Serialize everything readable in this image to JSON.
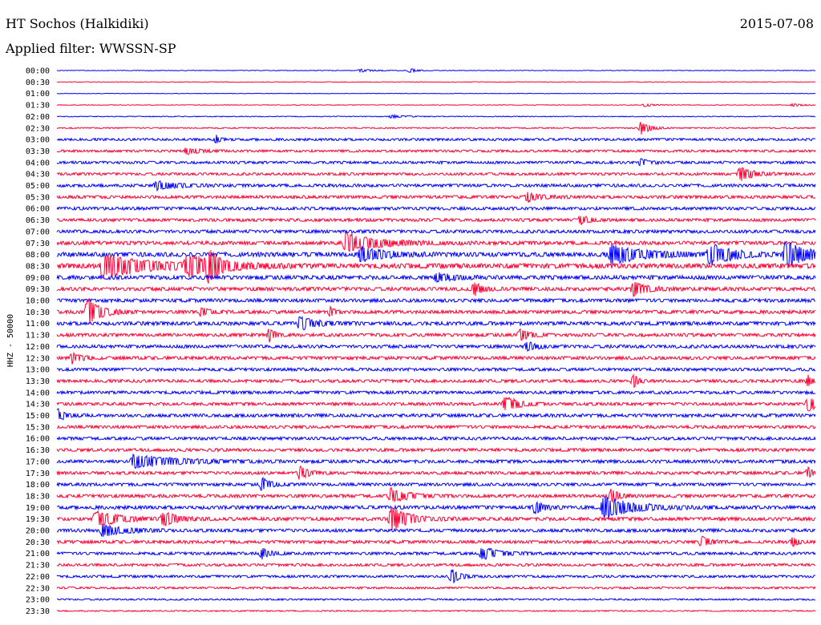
{
  "header": {
    "station": "HT Sochos (Halkidiki)",
    "date": "2015-07-08",
    "filter_label": "Applied filter: WWSSN-SP"
  },
  "chart_data": {
    "type": "line",
    "title": "HT Sochos (Halkidiki)",
    "subtitle": "Applied filter: WWSSN-SP",
    "ylabel": "HHZ - 50000",
    "trace_colors": [
      "#0000ff",
      "#ff0033"
    ],
    "rows": [
      "00:00",
      "00:30",
      "01:00",
      "01:30",
      "02:00",
      "02:30",
      "03:00",
      "03:30",
      "04:00",
      "04:30",
      "05:00",
      "05:30",
      "06:00",
      "06:30",
      "07:00",
      "07:30",
      "08:00",
      "08:30",
      "09:00",
      "09:30",
      "10:00",
      "10:30",
      "11:00",
      "11:30",
      "12:00",
      "12:30",
      "13:00",
      "13:30",
      "14:00",
      "14:30",
      "15:00",
      "15:30",
      "16:00",
      "16:30",
      "17:00",
      "17:30",
      "18:00",
      "18:30",
      "19:00",
      "19:30",
      "20:00",
      "20:30",
      "21:00",
      "21:30",
      "22:00",
      "22:30",
      "23:00",
      "23:30"
    ],
    "noise_level": [
      0.3,
      0.3,
      0.25,
      0.3,
      0.4,
      0.6,
      1.2,
      1.2,
      1.3,
      1.3,
      1.5,
      1.5,
      1.5,
      1.5,
      1.6,
      1.8,
      2.2,
      2.4,
      2.0,
      1.8,
      1.7,
      1.7,
      1.8,
      1.6,
      1.6,
      1.6,
      1.5,
      1.5,
      1.5,
      1.5,
      1.6,
      1.5,
      1.5,
      1.5,
      1.6,
      1.5,
      1.5,
      1.6,
      1.7,
      1.7,
      1.6,
      1.5,
      1.4,
      1.3,
      1.2,
      1.0,
      0.8,
      0.6
    ],
    "events": [
      {
        "row": 0,
        "pos": 0.4,
        "amp": 2,
        "dur": 0.03
      },
      {
        "row": 0,
        "pos": 0.465,
        "amp": 3,
        "dur": 0.015
      },
      {
        "row": 3,
        "pos": 0.775,
        "amp": 2,
        "dur": 0.02
      },
      {
        "row": 3,
        "pos": 0.97,
        "amp": 2,
        "dur": 0.02
      },
      {
        "row": 4,
        "pos": 0.44,
        "amp": 2,
        "dur": 0.03
      },
      {
        "row": 5,
        "pos": 0.77,
        "amp": 9,
        "dur": 0.02
      },
      {
        "row": 6,
        "pos": 0.21,
        "amp": 5,
        "dur": 0.01
      },
      {
        "row": 7,
        "pos": 0.17,
        "amp": 4,
        "dur": 0.03
      },
      {
        "row": 8,
        "pos": 0.77,
        "amp": 5,
        "dur": 0.02
      },
      {
        "row": 9,
        "pos": 0.9,
        "amp": 9,
        "dur": 0.03
      },
      {
        "row": 10,
        "pos": 0.13,
        "amp": 5,
        "dur": 0.05
      },
      {
        "row": 11,
        "pos": 0.62,
        "amp": 6,
        "dur": 0.03
      },
      {
        "row": 13,
        "pos": 0.69,
        "amp": 6,
        "dur": 0.02
      },
      {
        "row": 15,
        "pos": 0.38,
        "amp": 12,
        "dur": 0.08
      },
      {
        "row": 16,
        "pos": 0.4,
        "amp": 9,
        "dur": 0.06
      },
      {
        "row": 16,
        "pos": 0.73,
        "amp": 12,
        "dur": 0.08
      },
      {
        "row": 16,
        "pos": 0.86,
        "amp": 14,
        "dur": 0.05
      },
      {
        "row": 16,
        "pos": 0.96,
        "amp": 16,
        "dur": 0.05
      },
      {
        "row": 17,
        "pos": 0.06,
        "amp": 15,
        "dur": 0.1
      },
      {
        "row": 17,
        "pos": 0.17,
        "amp": 12,
        "dur": 0.08
      },
      {
        "row": 17,
        "pos": 0.2,
        "amp": 20,
        "dur": 0.02
      },
      {
        "row": 18,
        "pos": 0.5,
        "amp": 5,
        "dur": 0.04
      },
      {
        "row": 19,
        "pos": 0.55,
        "amp": 8,
        "dur": 0.02
      },
      {
        "row": 19,
        "pos": 0.76,
        "amp": 9,
        "dur": 0.03
      },
      {
        "row": 21,
        "pos": 0.04,
        "amp": 18,
        "dur": 0.03
      },
      {
        "row": 21,
        "pos": 0.19,
        "amp": 5,
        "dur": 0.02
      },
      {
        "row": 21,
        "pos": 0.36,
        "amp": 6,
        "dur": 0.01
      },
      {
        "row": 22,
        "pos": 0.32,
        "amp": 8,
        "dur": 0.04
      },
      {
        "row": 23,
        "pos": 0.28,
        "amp": 10,
        "dur": 0.01
      },
      {
        "row": 23,
        "pos": 0.61,
        "amp": 8,
        "dur": 0.02
      },
      {
        "row": 24,
        "pos": 0.62,
        "amp": 6,
        "dur": 0.02
      },
      {
        "row": 25,
        "pos": 0.02,
        "amp": 7,
        "dur": 0.02
      },
      {
        "row": 27,
        "pos": 0.76,
        "amp": 9,
        "dur": 0.01
      },
      {
        "row": 27,
        "pos": 0.99,
        "amp": 7,
        "dur": 0.01
      },
      {
        "row": 29,
        "pos": 0.59,
        "amp": 10,
        "dur": 0.03
      },
      {
        "row": 29,
        "pos": 0.99,
        "amp": 10,
        "dur": 0.02
      },
      {
        "row": 30,
        "pos": 0.0,
        "amp": 8,
        "dur": 0.02
      },
      {
        "row": 34,
        "pos": 0.1,
        "amp": 8,
        "dur": 0.1
      },
      {
        "row": 35,
        "pos": 0.32,
        "amp": 9,
        "dur": 0.02
      },
      {
        "row": 35,
        "pos": 0.99,
        "amp": 7,
        "dur": 0.01
      },
      {
        "row": 36,
        "pos": 0.27,
        "amp": 9,
        "dur": 0.02
      },
      {
        "row": 37,
        "pos": 0.44,
        "amp": 9,
        "dur": 0.04
      },
      {
        "row": 37,
        "pos": 0.73,
        "amp": 8,
        "dur": 0.02
      },
      {
        "row": 38,
        "pos": 0.63,
        "amp": 8,
        "dur": 0.02
      },
      {
        "row": 38,
        "pos": 0.72,
        "amp": 14,
        "dur": 0.07
      },
      {
        "row": 39,
        "pos": 0.05,
        "amp": 11,
        "dur": 0.05
      },
      {
        "row": 39,
        "pos": 0.14,
        "amp": 10,
        "dur": 0.03
      },
      {
        "row": 39,
        "pos": 0.44,
        "amp": 16,
        "dur": 0.04
      },
      {
        "row": 40,
        "pos": 0.06,
        "amp": 8,
        "dur": 0.05
      },
      {
        "row": 41,
        "pos": 0.85,
        "amp": 7,
        "dur": 0.02
      },
      {
        "row": 41,
        "pos": 0.97,
        "amp": 7,
        "dur": 0.01
      },
      {
        "row": 42,
        "pos": 0.27,
        "amp": 7,
        "dur": 0.02
      },
      {
        "row": 42,
        "pos": 0.56,
        "amp": 8,
        "dur": 0.04
      },
      {
        "row": 44,
        "pos": 0.52,
        "amp": 9,
        "dur": 0.02
      }
    ]
  }
}
